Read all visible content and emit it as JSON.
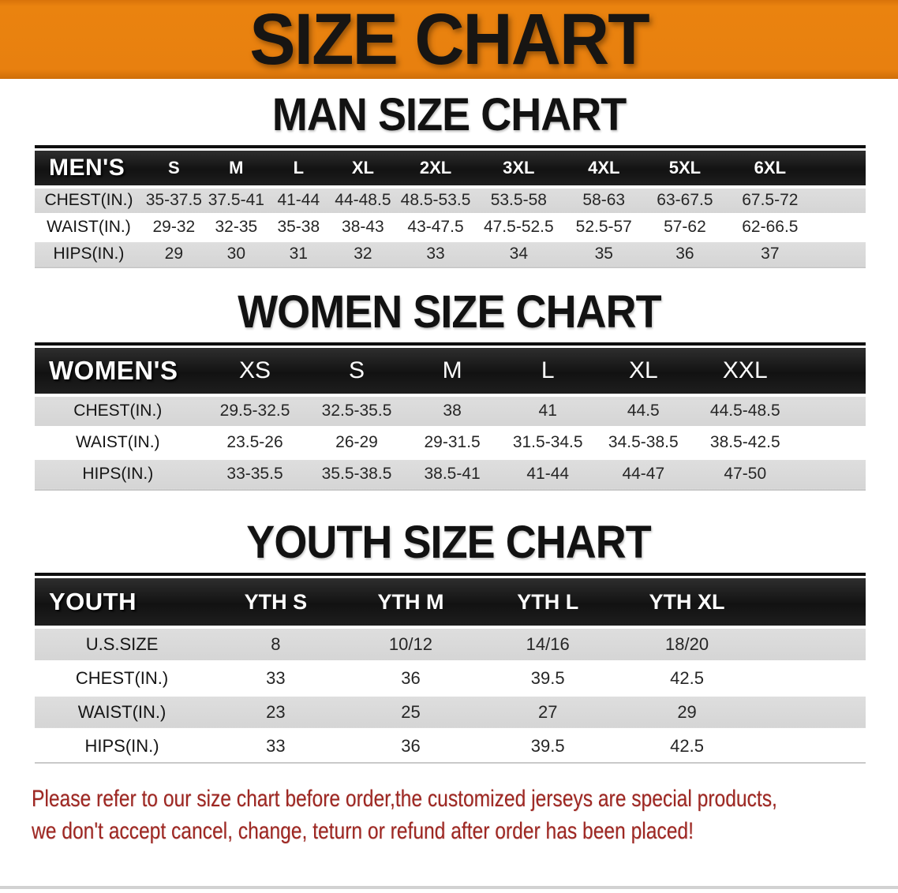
{
  "banner": {
    "title": "SIZE CHART"
  },
  "colors": {
    "banner_orange": "#E8800F",
    "header_bar_black": "#1A1A1A",
    "row_stripe_gray": "#D8D8D8",
    "disclaimer_red": "#9E2722"
  },
  "sections": {
    "men": {
      "heading": "MAN SIZE CHART",
      "table": {
        "corner_label": "MEN'S",
        "sizes": [
          "S",
          "M",
          "L",
          "XL",
          "2XL",
          "3XL",
          "4XL",
          "5XL",
          "6XL"
        ],
        "rows": [
          {
            "label": "CHEST(IN.)",
            "values": [
              "35-37.5",
              "37.5-41",
              "41-44",
              "44-48.5",
              "48.5-53.5",
              "53.5-58",
              "58-63",
              "63-67.5",
              "67.5-72"
            ]
          },
          {
            "label": "WAIST(IN.)",
            "values": [
              "29-32",
              "32-35",
              "35-38",
              "38-43",
              "43-47.5",
              "47.5-52.5",
              "52.5-57",
              "57-62",
              "62-66.5"
            ]
          },
          {
            "label": "HIPS(IN.)",
            "values": [
              "29",
              "30",
              "31",
              "32",
              "33",
              "34",
              "35",
              "36",
              "37"
            ]
          }
        ]
      }
    },
    "women": {
      "heading": "WOMEN SIZE CHART",
      "table": {
        "corner_label": "WOMEN'S",
        "sizes": [
          "XS",
          "S",
          "M",
          "L",
          "XL",
          "XXL"
        ],
        "rows": [
          {
            "label": "CHEST(IN.)",
            "values": [
              "29.5-32.5",
              "32.5-35.5",
              "38",
              "41",
              "44.5",
              "44.5-48.5"
            ]
          },
          {
            "label": "WAIST(IN.)",
            "values": [
              "23.5-26",
              "26-29",
              "29-31.5",
              "31.5-34.5",
              "34.5-38.5",
              "38.5-42.5"
            ]
          },
          {
            "label": "HIPS(IN.)",
            "values": [
              "33-35.5",
              "35.5-38.5",
              "38.5-41",
              "41-44",
              "44-47",
              "47-50"
            ]
          }
        ]
      }
    },
    "youth": {
      "heading": "YOUTH SIZE CHART",
      "table": {
        "corner_label": "YOUTH",
        "sizes": [
          "YTH S",
          "YTH M",
          "YTH L",
          "YTH XL"
        ],
        "rows": [
          {
            "label": "U.S.SIZE",
            "values": [
              "8",
              "10/12",
              "14/16",
              "18/20"
            ]
          },
          {
            "label": "CHEST(IN.)",
            "values": [
              "33",
              "36",
              "39.5",
              "42.5"
            ]
          },
          {
            "label": "WAIST(IN.)",
            "values": [
              "23",
              "25",
              "27",
              "29"
            ]
          },
          {
            "label": "HIPS(IN.)",
            "values": [
              "33",
              "36",
              "39.5",
              "42.5"
            ]
          }
        ]
      }
    }
  },
  "disclaimer": {
    "line1": "Please refer to our size chart before order,the customized jerseys are special products,",
    "line2": "we don't accept cancel, change, teturn or refund after order has been placed!"
  }
}
